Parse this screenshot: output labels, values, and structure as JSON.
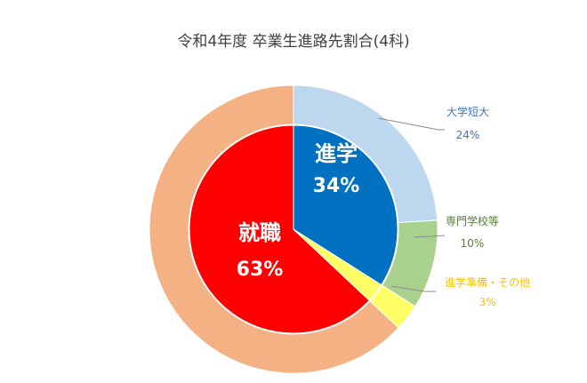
{
  "chart_data": {
    "type": "pie",
    "title": "令和4年度 卒業生進路先割合(4科)",
    "inner": [
      {
        "label": "進学",
        "value": 34,
        "value_label": "34%",
        "color": "#0070c0",
        "label_color": "#ffffff"
      },
      {
        "label": "就職",
        "value": 63,
        "value_label": "63%",
        "color": "#ff0000",
        "label_color": "#ffffff"
      },
      {
        "label": "",
        "value": 3,
        "value_label": "",
        "color": "#ffff66",
        "label_color": "#ffffff"
      }
    ],
    "outer": [
      {
        "label": "大学短大",
        "value": 24,
        "value_label": "24%",
        "color": "#bdd7ee",
        "label_color": "#4472c4"
      },
      {
        "label": "専門学校等",
        "value": 10,
        "value_label": "10%",
        "color": "#a9d18e",
        "label_color": "#548235"
      },
      {
        "label": "進学準備・その他",
        "value": 3,
        "value_label": "3%",
        "color": "#ffff66",
        "label_color": "#ffc000"
      },
      {
        "label": "",
        "value": 63,
        "value_label": "",
        "color": "#f4b183",
        "label_color": "#000000"
      }
    ],
    "leader_line_color": "#8c8c8c"
  }
}
